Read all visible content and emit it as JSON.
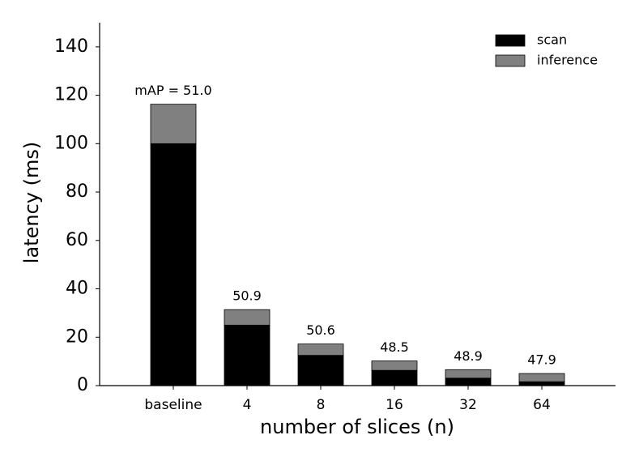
{
  "chart_data": {
    "type": "stacked_bar",
    "x_label": "number of slices (n)",
    "y_label": "latency (ms)",
    "categories": [
      "baseline",
      "4",
      "8",
      "16",
      "32",
      "64"
    ],
    "series": [
      {
        "name": "scan",
        "color": "#000000",
        "values": [
          100,
          25,
          12.5,
          6.3,
          3.1,
          1.6
        ]
      },
      {
        "name": "inference",
        "color": "#808080",
        "values": [
          16.3,
          6.4,
          4.7,
          3.9,
          3.5,
          3.4
        ]
      }
    ],
    "annotations": [
      "mAP = 51.0",
      "50.9",
      "50.6",
      "48.5",
      "48.9",
      "47.9"
    ],
    "ylim": [
      0,
      150
    ],
    "yticks": [
      0,
      20,
      40,
      60,
      80,
      100,
      120,
      140
    ],
    "legend": "upper right"
  }
}
